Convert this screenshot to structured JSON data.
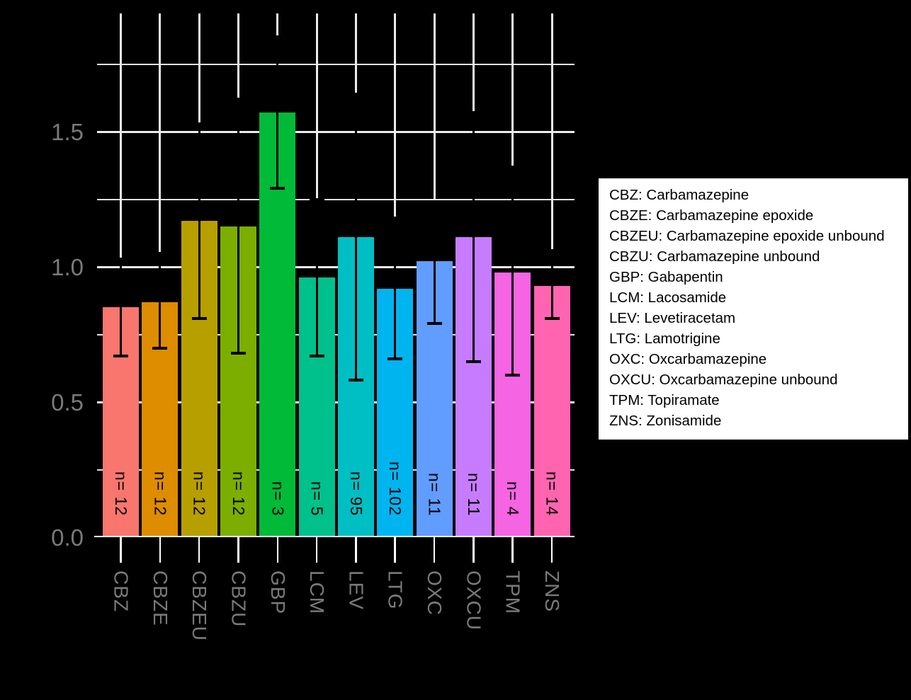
{
  "chart_data": {
    "type": "bar",
    "title": "",
    "xlabel": "",
    "ylabel": "",
    "categories": [
      "CBZ",
      "CBZE",
      "CBZEU",
      "CBZU",
      "GBP",
      "LCM",
      "LEV",
      "LTG",
      "OXC",
      "OXCU",
      "TPM",
      "ZNS"
    ],
    "values": [
      0.85,
      0.87,
      1.17,
      1.15,
      1.57,
      0.96,
      1.11,
      0.92,
      1.02,
      1.11,
      0.98,
      0.93
    ],
    "error_low": [
      0.67,
      0.7,
      0.81,
      0.68,
      1.29,
      0.67,
      0.58,
      0.66,
      0.79,
      0.65,
      0.6,
      0.81
    ],
    "error_high": [
      1.03,
      1.05,
      1.53,
      1.62,
      1.85,
      1.25,
      1.64,
      1.18,
      1.24,
      1.57,
      1.37,
      1.06
    ],
    "n_labels": [
      "n= 12",
      "n= 12",
      "n= 12",
      "n= 12",
      "n= 3",
      "n= 5",
      "n= 95",
      "n= 102",
      "n= 11",
      "n= 11",
      "n= 4",
      "n= 14"
    ],
    "bar_colors": [
      "#F8766D",
      "#DE8C00",
      "#B79F00",
      "#7CAE00",
      "#00BA38",
      "#00C08B",
      "#00BFC4",
      "#00B4F0",
      "#619CFF",
      "#C77CFF",
      "#F564E3",
      "#FF64B0"
    ],
    "y_ticks": {
      "values": [
        0.0,
        0.5,
        1.0,
        1.5
      ],
      "labels": [
        "0.0",
        "0.5",
        "1.0",
        "1.5"
      ]
    },
    "y_minor": [
      0.25,
      0.75,
      1.25,
      1.75
    ],
    "ylim": [
      0,
      1.94
    ],
    "grid": true,
    "legend_position": "right"
  },
  "legend": {
    "entries": [
      "CBZ: Carbamazepine",
      "CBZE: Carbamazepine epoxide",
      "CBZEU: Carbamazepine epoxide unbound",
      "CBZU: Carbamazepine unbound",
      "GBP: Gabapentin",
      "LCM: Lacosamide",
      "LEV: Levetiracetam",
      "LTG: Lamotrigine",
      "OXC: Oxcarbamazepine",
      "OXCU: Oxcarbamazepine unbound",
      "TPM: Topiramate",
      "ZNS: Zonisamide"
    ]
  },
  "colors": {
    "background": "#000000",
    "grid_major": "#ECECEC",
    "grid_minor": "#E2E2E2",
    "axis": "#FFFFFF",
    "axis_text": "#7A7A7A",
    "error_bar": "#000000",
    "bar_label_text": "#000000",
    "legend_bg": "#FFFFFF",
    "legend_text": "#000000"
  }
}
